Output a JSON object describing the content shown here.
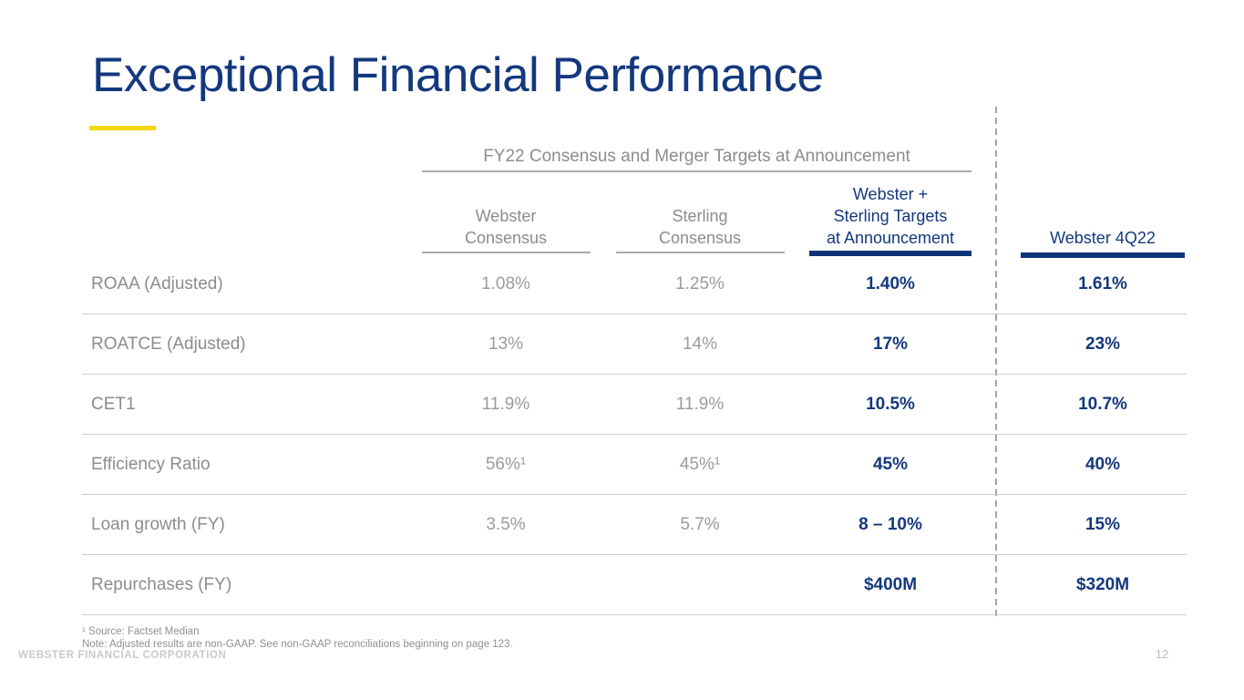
{
  "slide": {
    "title": "Exceptional Financial Performance",
    "colors": {
      "navy": "#14387E",
      "accent_yellow": "#F5D60A",
      "muted_gray": "#8C8C8C",
      "value_gray": "#9B9B9B",
      "divider_gray": "#CFCFCF"
    }
  },
  "table": {
    "group_header": "FY22 Consensus and Merger Targets at Announcement",
    "columns": [
      {
        "label": "Webster\nConsensus",
        "style": "muted"
      },
      {
        "label": "Sterling\nConsensus",
        "style": "muted"
      },
      {
        "label": "Webster +\nSterling Targets\nat Announcement",
        "style": "accent"
      },
      {
        "label": "Webster 4Q22",
        "style": "accent"
      }
    ],
    "rows": [
      {
        "label": "ROAA (Adjusted)",
        "values": [
          "1.08%",
          "1.25%",
          "1.40%",
          "1.61%"
        ]
      },
      {
        "label": "ROATCE (Adjusted)",
        "values": [
          "13%",
          "14%",
          "17%",
          "23%"
        ]
      },
      {
        "label": "CET1",
        "values": [
          "11.9%",
          "11.9%",
          "10.5%",
          "10.7%"
        ]
      },
      {
        "label": "Efficiency Ratio",
        "values": [
          "56%¹",
          "45%¹",
          "45%",
          "40%"
        ]
      },
      {
        "label": "Loan growth (FY)",
        "values": [
          "3.5%",
          "5.7%",
          "8 – 10%",
          "15%"
        ]
      },
      {
        "label": "Repurchases (FY)",
        "values": [
          "",
          "",
          "$400M",
          "$320M"
        ]
      }
    ]
  },
  "footer": {
    "footnote_source": "¹ Source: Factset Median",
    "footnote_note": "Note: Adjusted results are non-GAAP. See non-GAAP reconciliations beginning on page 123.",
    "company": "WEBSTER FINANCIAL CORPORATION",
    "page_number": "12"
  }
}
